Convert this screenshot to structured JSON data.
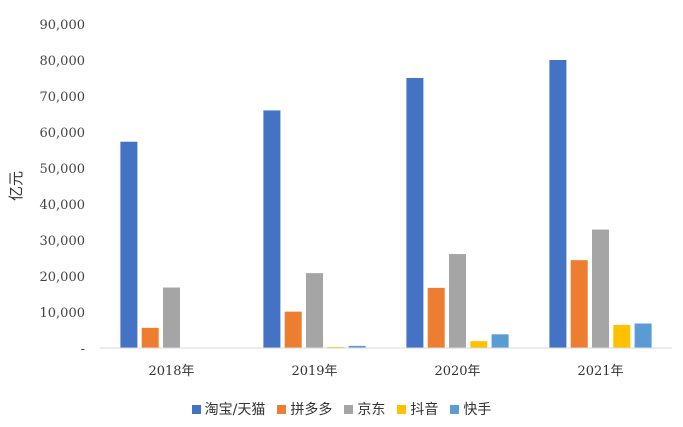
{
  "chart_data": {
    "type": "bar",
    "categories": [
      "2018年",
      "2019年",
      "2020年",
      "2021年"
    ],
    "series": [
      {
        "name": "淘宝/天猫",
        "color": "#4472C4",
        "values": [
          57300,
          66000,
          75000,
          80000
        ]
      },
      {
        "name": "拼多多",
        "color": "#ED7D31",
        "values": [
          5600,
          10100,
          16700,
          24400
        ]
      },
      {
        "name": "京东",
        "color": "#A5A5A5",
        "values": [
          16800,
          20800,
          26100,
          32900
        ]
      },
      {
        "name": "抖音",
        "color": "#FFC000",
        "values": [
          0,
          300,
          1900,
          6400
        ]
      },
      {
        "name": "快手",
        "color": "#5B9BD5",
        "values": [
          0,
          600,
          3800,
          6800
        ]
      }
    ],
    "ylabel": "亿元",
    "ylim": [
      0,
      90000
    ],
    "yticks": [
      "-",
      "10,000",
      "20,000",
      "30,000",
      "40,000",
      "50,000",
      "60,000",
      "70,000",
      "80,000",
      "90,000"
    ],
    "legend": "bottom",
    "grid": false
  }
}
